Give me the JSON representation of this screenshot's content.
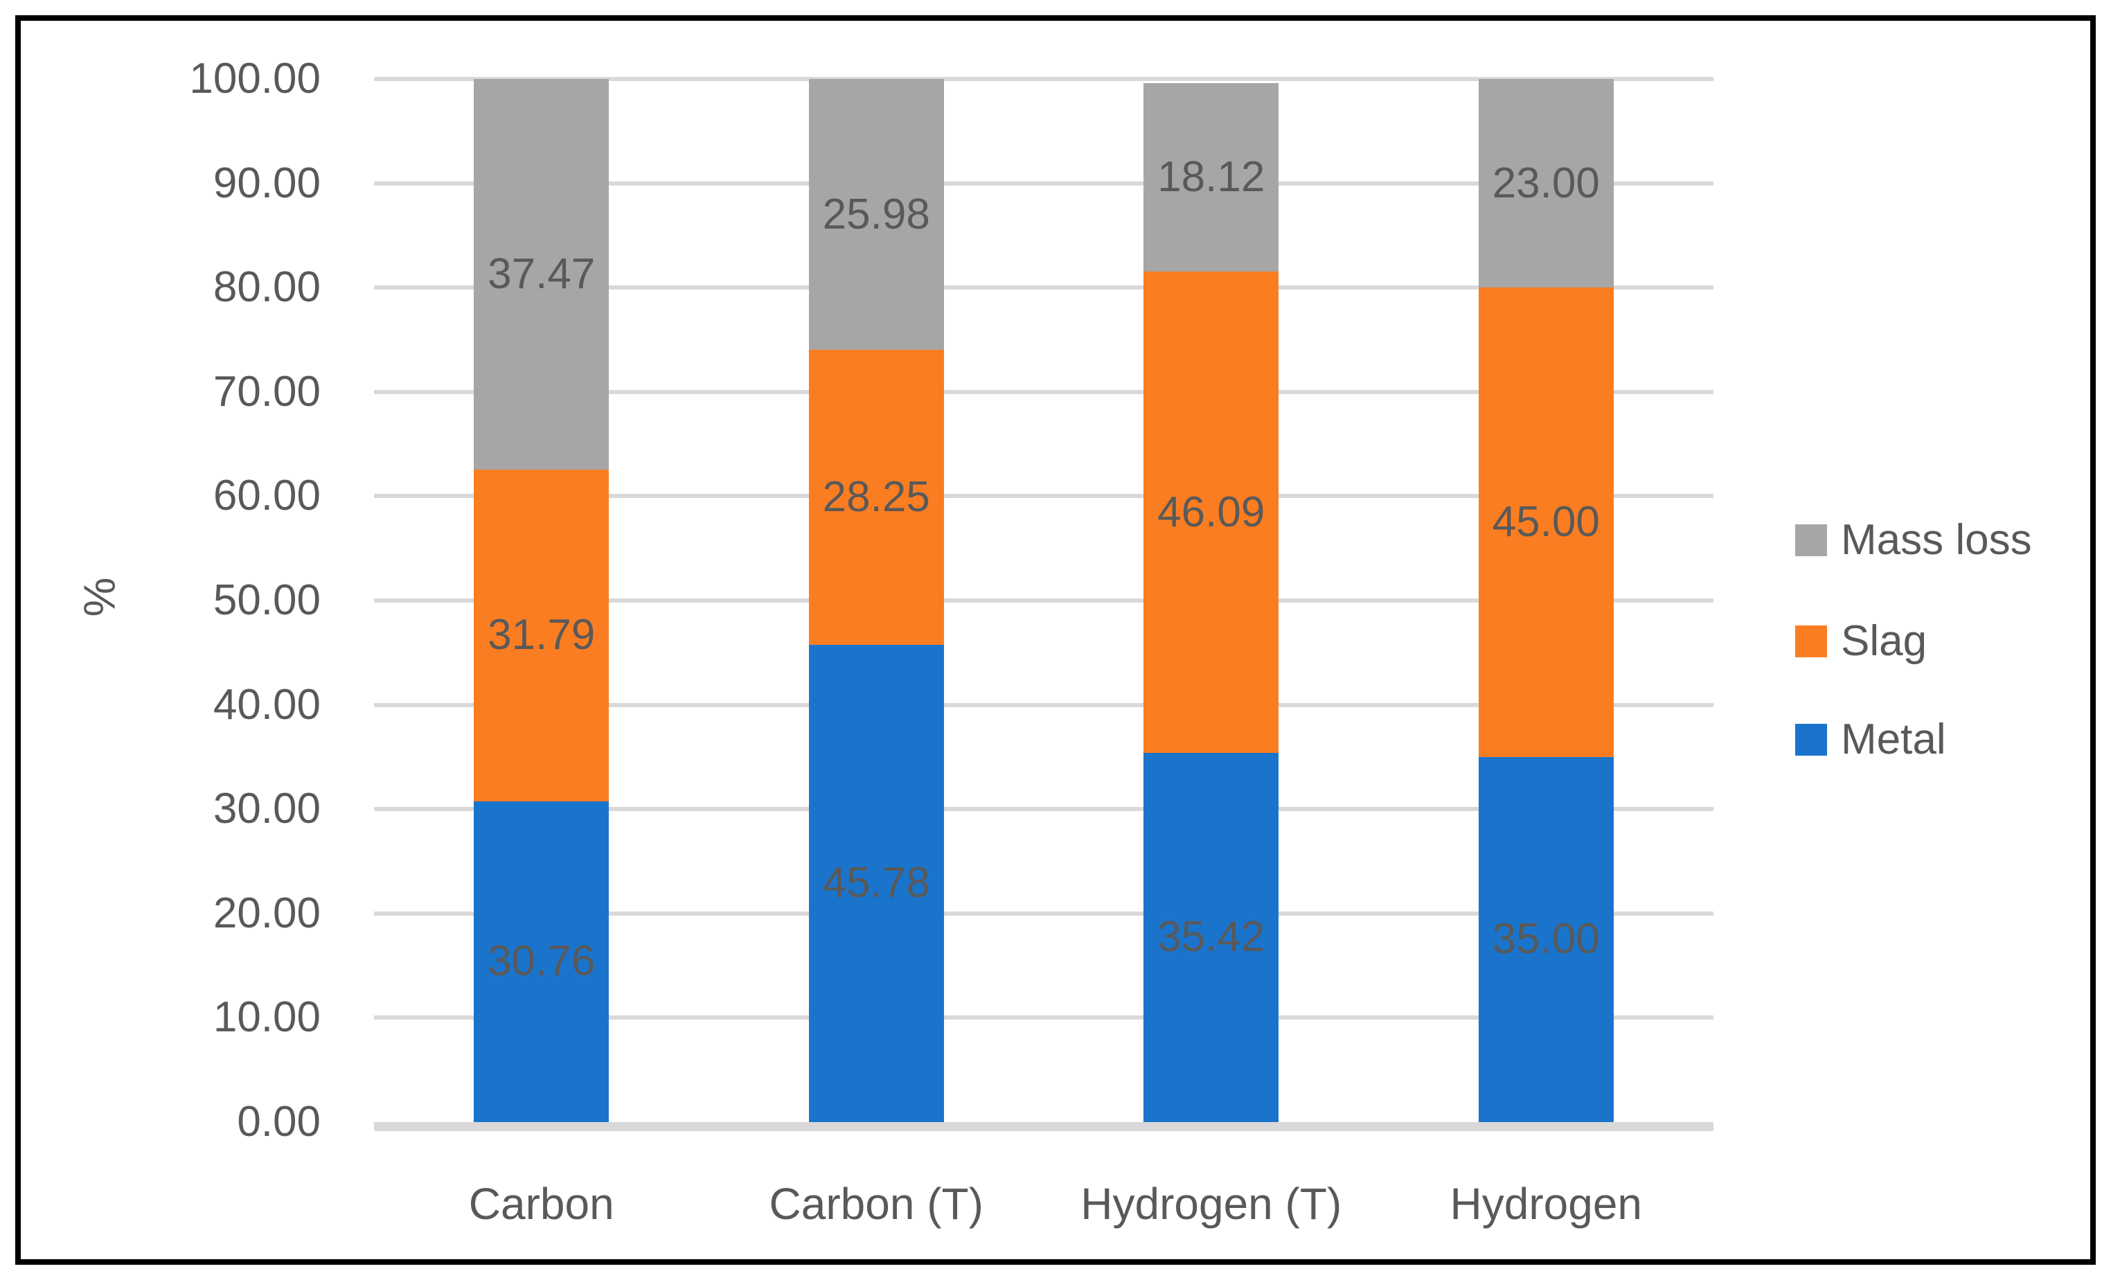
{
  "chart_data": {
    "type": "bar",
    "stacked": true,
    "categories": [
      "Carbon",
      "Carbon (T)",
      "Hydrogen (T)",
      "Hydrogen"
    ],
    "series": [
      {
        "name": "Metal",
        "color": "#1B74CB",
        "values": [
          30.76,
          45.78,
          35.42,
          35.0
        ]
      },
      {
        "name": "Slag",
        "color": "#FB7D21",
        "values": [
          31.79,
          28.25,
          46.09,
          45.0
        ]
      },
      {
        "name": "Mass loss",
        "color": "#A6A6A6",
        "values": [
          37.47,
          25.98,
          18.12,
          23.0
        ]
      }
    ],
    "title": "",
    "xlabel": "",
    "ylabel": "%",
    "ylim": [
      0,
      100
    ],
    "ytick_step": 10,
    "tick_decimals": 2,
    "data_label_decimals": 2,
    "grid": true,
    "legend_position": "right",
    "legend_order": [
      "Mass loss",
      "Slag",
      "Metal"
    ],
    "stack_cap": 100
  },
  "styles": {
    "label_color": "#595959",
    "gridline_color": "#D9D9D9",
    "frame_color": "#000000",
    "background_color": "#FFFFFF",
    "metal_color": "#1B74CB",
    "slag_color": "#FB7D21",
    "mass_loss_color": "#A6A6A6"
  }
}
